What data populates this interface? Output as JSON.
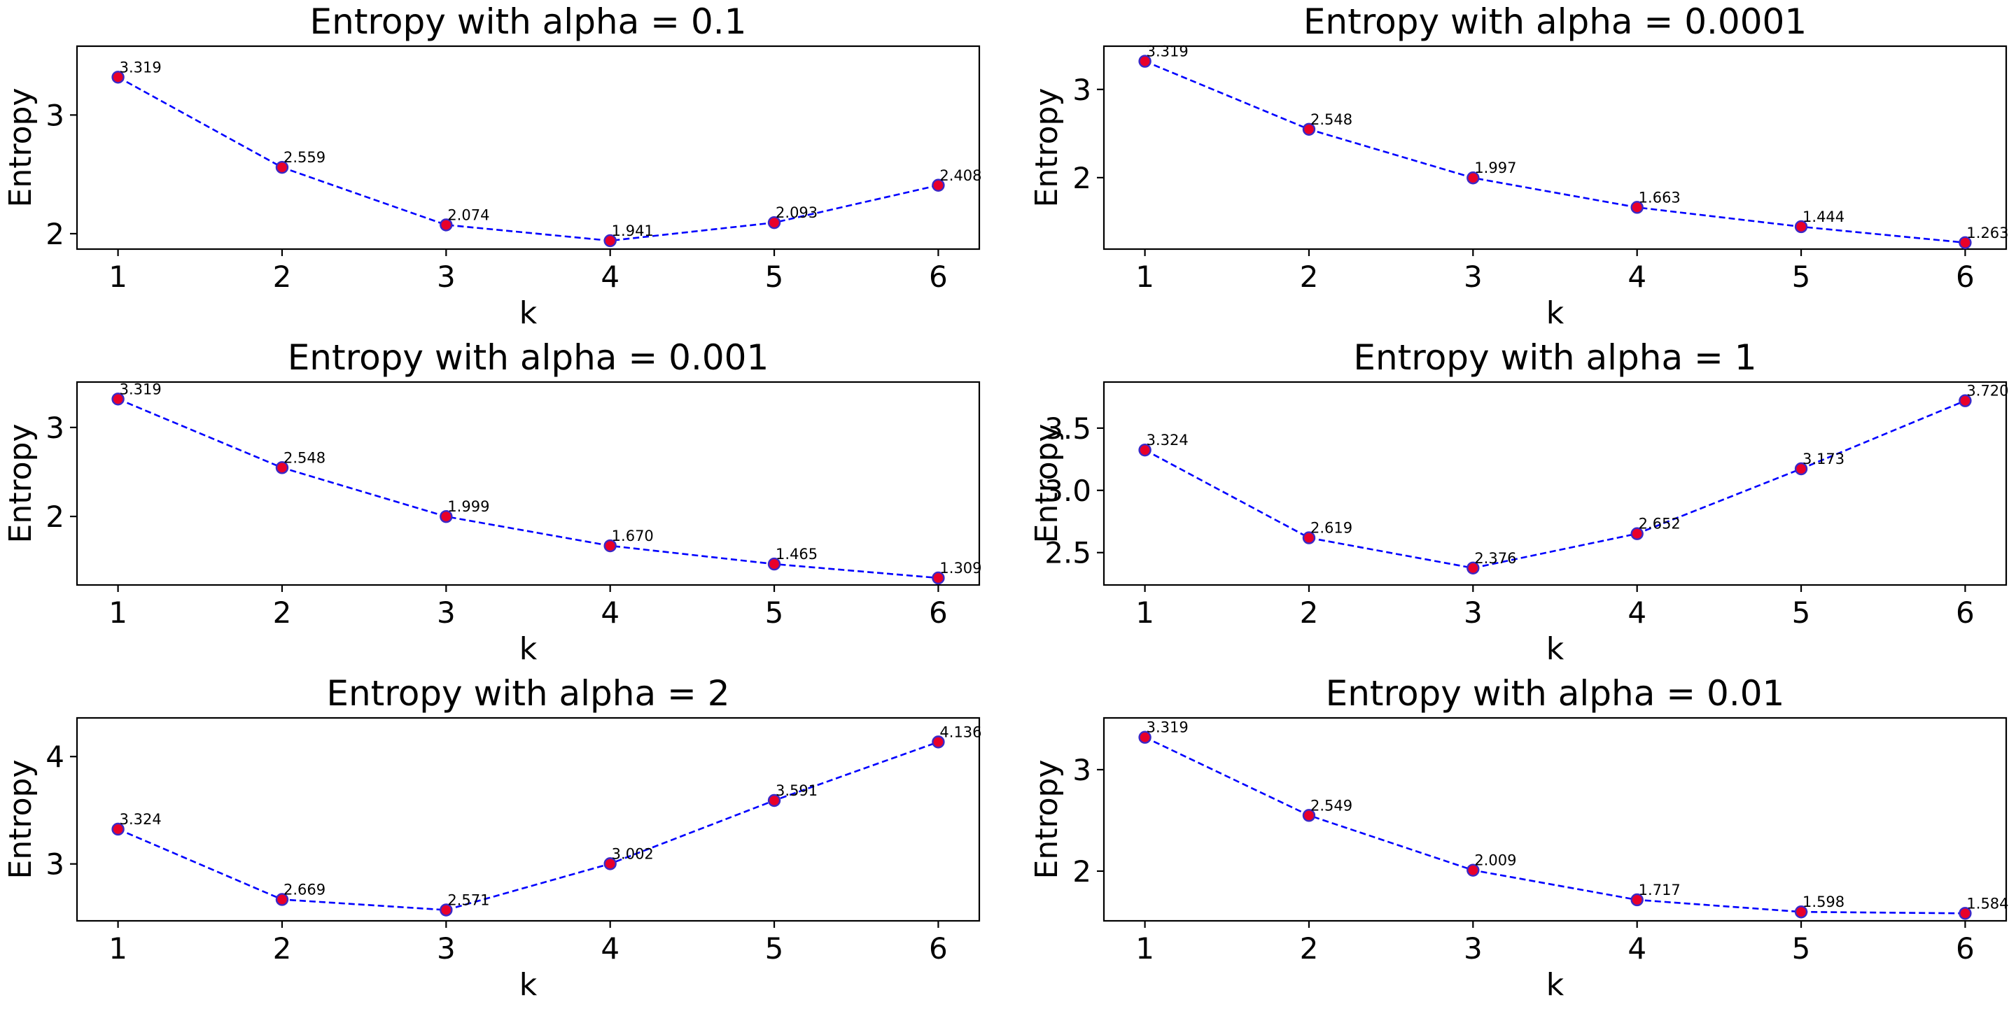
{
  "colors": {
    "line": "#0000ff",
    "marker_fill": "#e8002a",
    "marker_edge": "#3a28c8"
  },
  "chart_data": [
    {
      "type": "line",
      "title": "Entropy with alpha = 0.1",
      "xlabel": "k",
      "ylabel": "Entropy",
      "x": [
        1,
        2,
        3,
        4,
        5,
        6
      ],
      "values": [
        3.319,
        2.559,
        2.074,
        1.941,
        2.093,
        2.408
      ],
      "labels": [
        "3.319",
        "2.559",
        "2.074",
        "1.941",
        "2.093",
        "2.408"
      ],
      "xticks": [
        1,
        2,
        3,
        4,
        5,
        6
      ],
      "yticks": [
        2,
        3
      ],
      "ytick_labels": [
        "2",
        "3"
      ],
      "xlim": [
        0.75,
        6.25
      ],
      "ylim": [
        1.87,
        3.58
      ],
      "grid": false
    },
    {
      "type": "line",
      "title": "Entropy with alpha = 0.0001",
      "xlabel": "k",
      "ylabel": "Entropy",
      "x": [
        1,
        2,
        3,
        4,
        5,
        6
      ],
      "values": [
        3.319,
        2.548,
        1.997,
        1.663,
        1.444,
        1.263
      ],
      "labels": [
        "3.319",
        "2.548",
        "1.997",
        "1.663",
        "1.444",
        "1.263"
      ],
      "xticks": [
        1,
        2,
        3,
        4,
        5,
        6
      ],
      "yticks": [
        2,
        3
      ],
      "ytick_labels": [
        "2",
        "3"
      ],
      "xlim": [
        0.75,
        6.25
      ],
      "ylim": [
        1.19,
        3.49
      ],
      "grid": false
    },
    {
      "type": "line",
      "title": "Entropy with alpha = 0.001",
      "xlabel": "k",
      "ylabel": "Entropy",
      "x": [
        1,
        2,
        3,
        4,
        5,
        6
      ],
      "values": [
        3.319,
        2.548,
        1.999,
        1.67,
        1.465,
        1.309
      ],
      "labels": [
        "3.319",
        "2.548",
        "1.999",
        "1.670",
        "1.465",
        "1.309"
      ],
      "xticks": [
        1,
        2,
        3,
        4,
        5,
        6
      ],
      "yticks": [
        2,
        3
      ],
      "ytick_labels": [
        "2",
        "3"
      ],
      "xlim": [
        0.75,
        6.25
      ],
      "ylim": [
        1.23,
        3.51
      ],
      "grid": false
    },
    {
      "type": "line",
      "title": "Entropy with alpha = 1",
      "xlabel": "k",
      "ylabel": "Entropy",
      "x": [
        1,
        2,
        3,
        4,
        5,
        6
      ],
      "values": [
        3.324,
        2.619,
        2.376,
        2.652,
        3.173,
        3.72
      ],
      "labels": [
        "3.324",
        "2.619",
        "2.376",
        "2.652",
        "3.173",
        "3.720"
      ],
      "xticks": [
        1,
        2,
        3,
        4,
        5,
        6
      ],
      "yticks": [
        2.5,
        3.0,
        3.5
      ],
      "ytick_labels": [
        "2.5",
        "3.0",
        "3.5"
      ],
      "xlim": [
        0.75,
        6.25
      ],
      "ylim": [
        2.24,
        3.87
      ],
      "grid": false
    },
    {
      "type": "line",
      "title": "Entropy with alpha = 2",
      "xlabel": "k",
      "ylabel": "Entropy",
      "x": [
        1,
        2,
        3,
        4,
        5,
        6
      ],
      "values": [
        3.324,
        2.669,
        2.571,
        3.002,
        3.591,
        4.136
      ],
      "labels": [
        "3.324",
        "2.669",
        "2.571",
        "3.002",
        "3.591",
        "4.136"
      ],
      "xticks": [
        1,
        2,
        3,
        4,
        5,
        6
      ],
      "yticks": [
        3,
        4
      ],
      "ytick_labels": [
        "3",
        "4"
      ],
      "xlim": [
        0.75,
        6.25
      ],
      "ylim": [
        2.47,
        4.36
      ],
      "grid": false
    },
    {
      "type": "line",
      "title": "Entropy with alpha = 0.01",
      "xlabel": "k",
      "ylabel": "Entropy",
      "x": [
        1,
        2,
        3,
        4,
        5,
        6
      ],
      "values": [
        3.319,
        2.549,
        2.009,
        1.717,
        1.598,
        1.584
      ],
      "labels": [
        "3.319",
        "2.549",
        "2.009",
        "1.717",
        "1.598",
        "1.584"
      ],
      "xticks": [
        1,
        2,
        3,
        4,
        5,
        6
      ],
      "yticks": [
        2,
        3
      ],
      "ytick_labels": [
        "2",
        "3"
      ],
      "xlim": [
        0.75,
        6.25
      ],
      "ylim": [
        1.51,
        3.51
      ],
      "grid": false
    }
  ]
}
